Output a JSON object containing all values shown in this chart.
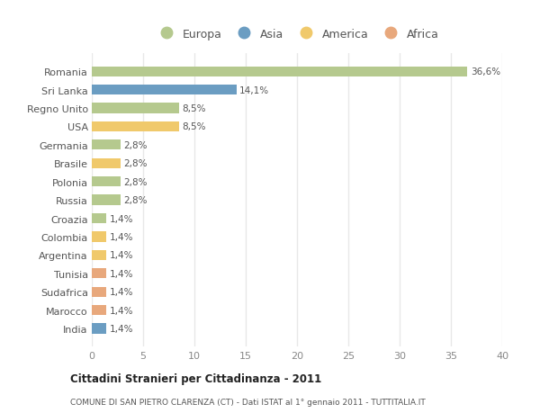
{
  "countries": [
    "Romania",
    "Sri Lanka",
    "Regno Unito",
    "USA",
    "Germania",
    "Brasile",
    "Polonia",
    "Russia",
    "Croazia",
    "Colombia",
    "Argentina",
    "Tunisia",
    "Sudafrica",
    "Marocco",
    "India"
  ],
  "values": [
    36.6,
    14.1,
    8.5,
    8.5,
    2.8,
    2.8,
    2.8,
    2.8,
    1.4,
    1.4,
    1.4,
    1.4,
    1.4,
    1.4,
    1.4
  ],
  "labels": [
    "36,6%",
    "14,1%",
    "8,5%",
    "8,5%",
    "2,8%",
    "2,8%",
    "2,8%",
    "2,8%",
    "1,4%",
    "1,4%",
    "1,4%",
    "1,4%",
    "1,4%",
    "1,4%",
    "1,4%"
  ],
  "continents": [
    "Europa",
    "Asia",
    "Europa",
    "America",
    "Europa",
    "America",
    "Europa",
    "Europa",
    "Europa",
    "America",
    "America",
    "Africa",
    "Africa",
    "Africa",
    "Asia"
  ],
  "colors": {
    "Europa": "#b5c98e",
    "Asia": "#6b9dc2",
    "America": "#f0c96b",
    "Africa": "#e8a87c"
  },
  "legend_order": [
    "Europa",
    "Asia",
    "America",
    "Africa"
  ],
  "title": "Cittadini Stranieri per Cittadinanza - 2011",
  "subtitle": "COMUNE DI SAN PIETRO CLARENZA (CT) - Dati ISTAT al 1° gennaio 2011 - TUTTITALIA.IT",
  "xlim": [
    0,
    40
  ],
  "xticks": [
    0,
    5,
    10,
    15,
    20,
    25,
    30,
    35,
    40
  ],
  "background_color": "#ffffff",
  "grid_color": "#e8e8e8",
  "bar_height": 0.55
}
